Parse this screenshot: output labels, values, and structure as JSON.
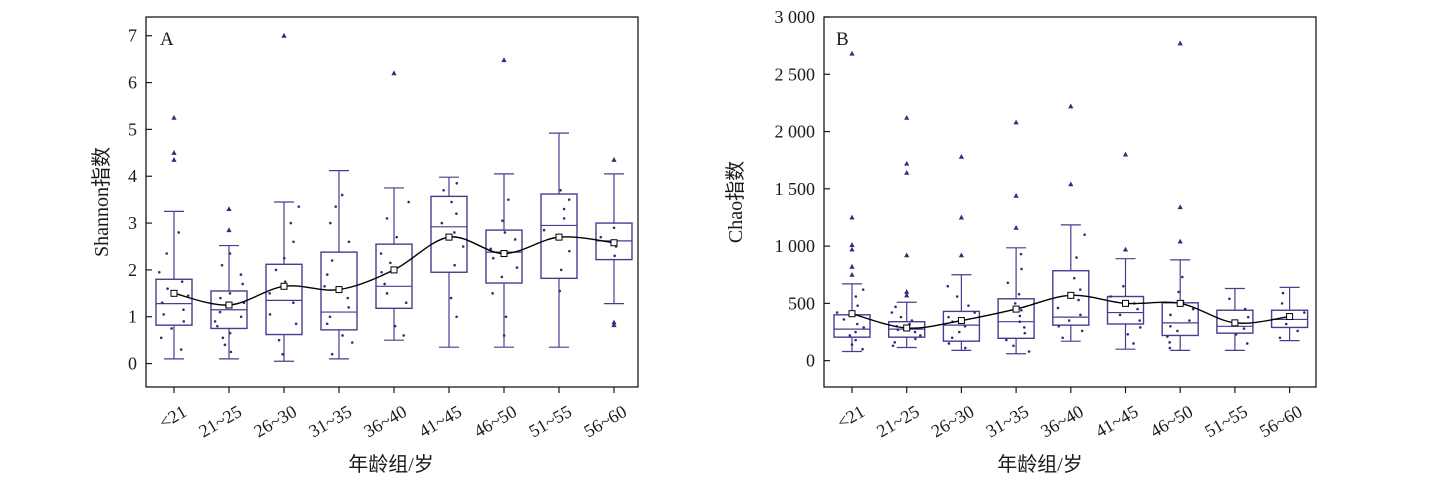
{
  "colors": {
    "box": "#4a3b8f",
    "point": "#2e2f7a",
    "mean_line": "#000000",
    "frame": "#1a1a1a"
  },
  "chart_data": [
    {
      "type": "box",
      "panel_label": "A",
      "title": "",
      "xlabel": "年龄组/岁",
      "ylabel": "Shannon指数",
      "ylim": [
        -0.5,
        7.4
      ],
      "yticks": [
        0,
        1,
        2,
        3,
        4,
        5,
        6,
        7
      ],
      "ytick_labels": [
        "0",
        "1",
        "2",
        "3",
        "4",
        "5",
        "6",
        "7"
      ],
      "categories": [
        "<21",
        "21~25",
        "26~30",
        "31~35",
        "36~40",
        "41~45",
        "46~50",
        "51~55",
        "56~60"
      ],
      "boxes": [
        {
          "whisker_low": 0.1,
          "q1": 0.82,
          "median": 1.28,
          "q3": 1.8,
          "whisker_high": 3.25,
          "mean": 1.5,
          "outliers": [
            4.35,
            4.5,
            5.25
          ],
          "points": [
            0.3,
            0.55,
            0.75,
            0.9,
            1.05,
            1.15,
            1.3,
            1.45,
            1.6,
            1.75,
            1.95,
            2.35,
            2.8
          ]
        },
        {
          "whisker_low": 0.1,
          "q1": 0.75,
          "median": 1.15,
          "q3": 1.55,
          "whisker_high": 2.52,
          "mean": 1.25,
          "outliers": [
            2.85,
            3.3
          ],
          "points": [
            0.25,
            0.4,
            0.55,
            0.65,
            0.8,
            0.9,
            1.0,
            1.1,
            1.2,
            1.3,
            1.4,
            1.5,
            1.7,
            1.9,
            2.1,
            2.35
          ]
        },
        {
          "whisker_low": 0.05,
          "q1": 0.62,
          "median": 1.35,
          "q3": 2.12,
          "whisker_high": 3.45,
          "mean": 1.65,
          "outliers": [
            7.0
          ],
          "points": [
            0.2,
            0.5,
            0.85,
            1.05,
            1.3,
            1.5,
            1.75,
            2.0,
            2.25,
            2.6,
            3.0,
            3.35
          ]
        },
        {
          "whisker_low": 0.1,
          "q1": 0.72,
          "median": 1.1,
          "q3": 2.38,
          "whisker_high": 4.12,
          "mean": 1.58,
          "outliers": [],
          "points": [
            0.2,
            0.45,
            0.6,
            0.85,
            1.0,
            1.2,
            1.4,
            1.65,
            1.9,
            2.2,
            2.6,
            3.0,
            3.35,
            3.6
          ]
        },
        {
          "whisker_low": 0.5,
          "q1": 1.18,
          "median": 1.65,
          "q3": 2.55,
          "whisker_high": 3.75,
          "mean": 2.0,
          "outliers": [
            6.2
          ],
          "points": [
            0.6,
            0.8,
            1.3,
            1.5,
            1.7,
            1.95,
            2.15,
            2.35,
            2.7,
            3.1,
            3.45
          ]
        },
        {
          "whisker_low": 0.35,
          "q1": 1.95,
          "median": 2.92,
          "q3": 3.57,
          "whisker_high": 3.98,
          "mean": 2.7,
          "outliers": [],
          "points": [
            1.0,
            1.4,
            2.1,
            2.5,
            2.8,
            3.0,
            3.2,
            3.45,
            3.7,
            3.85
          ]
        },
        {
          "whisker_low": 0.35,
          "q1": 1.72,
          "median": 2.38,
          "q3": 2.85,
          "whisker_high": 4.05,
          "mean": 2.35,
          "outliers": [
            6.48
          ],
          "points": [
            0.6,
            1.0,
            1.5,
            1.85,
            2.05,
            2.25,
            2.45,
            2.65,
            2.8,
            3.05,
            3.5
          ]
        },
        {
          "whisker_low": 0.35,
          "q1": 1.82,
          "median": 2.95,
          "q3": 3.62,
          "whisker_high": 4.92,
          "mean": 2.7,
          "outliers": [],
          "points": [
            1.55,
            2.0,
            2.4,
            2.85,
            3.1,
            3.3,
            3.5,
            3.7
          ]
        },
        {
          "whisker_low": 1.28,
          "q1": 2.22,
          "median": 2.62,
          "q3": 3.0,
          "whisker_high": 4.05,
          "mean": 2.58,
          "outliers": [
            0.82,
            0.88,
            4.35
          ],
          "points": [
            2.3,
            2.5,
            2.7,
            2.9
          ]
        }
      ]
    },
    {
      "type": "box",
      "panel_label": "B",
      "title": "",
      "xlabel": "年龄组/岁",
      "ylabel": "Chao指数",
      "ylim": [
        -230,
        3000
      ],
      "yticks": [
        0,
        500,
        1000,
        1500,
        2000,
        2500,
        3000
      ],
      "ytick_labels": [
        "0",
        "500",
        "1 000",
        "1 500",
        "2 000",
        "2 500",
        "3 000"
      ],
      "categories": [
        "<21",
        "21~25",
        "26~30",
        "31~35",
        "36~40",
        "41~45",
        "46~50",
        "51~55",
        "56~60"
      ],
      "boxes": [
        {
          "whisker_low": 80,
          "q1": 205,
          "median": 275,
          "q3": 400,
          "whisker_high": 670,
          "mean": 410,
          "outliers": [
            750,
            820,
            970,
            1010,
            1250,
            2680
          ],
          "points": [
            100,
            140,
            180,
            220,
            250,
            290,
            320,
            360,
            420,
            480,
            560,
            620
          ]
        },
        {
          "whisker_low": 115,
          "q1": 205,
          "median": 275,
          "q3": 340,
          "whisker_high": 510,
          "mean": 285,
          "outliers": [
            570,
            600,
            920,
            1640,
            1720,
            2120
          ],
          "points": [
            130,
            160,
            190,
            220,
            250,
            270,
            300,
            320,
            350,
            380,
            420,
            470
          ]
        },
        {
          "whisker_low": 90,
          "q1": 170,
          "median": 310,
          "q3": 430,
          "whisker_high": 750,
          "mean": 350,
          "outliers": [
            920,
            1250,
            1780
          ],
          "points": [
            110,
            150,
            200,
            250,
            300,
            340,
            380,
            420,
            480,
            560,
            650
          ]
        },
        {
          "whisker_low": 60,
          "q1": 195,
          "median": 340,
          "q3": 540,
          "whisker_high": 985,
          "mean": 450,
          "outliers": [
            1160,
            1440,
            2080
          ],
          "points": [
            80,
            130,
            180,
            240,
            290,
            340,
            390,
            440,
            500,
            580,
            680,
            800,
            930
          ]
        },
        {
          "whisker_low": 170,
          "q1": 310,
          "median": 380,
          "q3": 785,
          "whisker_high": 1185,
          "mean": 570,
          "outliers": [
            1540,
            2220
          ],
          "points": [
            200,
            260,
            300,
            350,
            400,
            460,
            530,
            620,
            720,
            900,
            1100
          ]
        },
        {
          "whisker_low": 100,
          "q1": 320,
          "median": 420,
          "q3": 560,
          "whisker_high": 890,
          "mean": 500,
          "outliers": [
            970,
            1800
          ],
          "points": [
            150,
            230,
            290,
            350,
            400,
            450,
            500,
            560,
            650
          ]
        },
        {
          "whisker_low": 90,
          "q1": 220,
          "median": 330,
          "q3": 505,
          "whisker_high": 880,
          "mean": 500,
          "outliers": [
            1040,
            1340,
            2770
          ],
          "points": [
            110,
            160,
            210,
            260,
            300,
            350,
            400,
            450,
            520,
            600,
            730
          ]
        },
        {
          "whisker_low": 90,
          "q1": 240,
          "median": 300,
          "q3": 440,
          "whisker_high": 630,
          "mean": 330,
          "outliers": [],
          "points": [
            150,
            230,
            280,
            320,
            380,
            450,
            540
          ]
        },
        {
          "whisker_low": 175,
          "q1": 290,
          "median": 360,
          "q3": 440,
          "whisker_high": 640,
          "mean": 385,
          "outliers": [],
          "points": [
            200,
            260,
            320,
            370,
            420,
            500,
            590
          ]
        }
      ]
    }
  ]
}
